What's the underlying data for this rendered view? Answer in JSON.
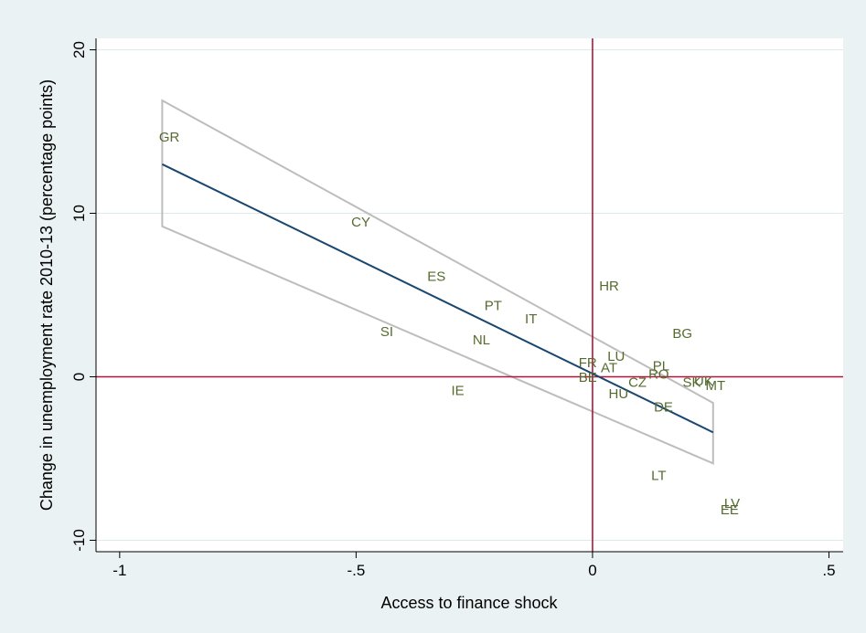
{
  "chart_data": {
    "type": "scatter",
    "title": "",
    "xlabel": "Access to finance shock",
    "ylabel": "Change in unemployment rate 2010-13 (percentage points)",
    "xlim": [
      -1.05,
      0.53
    ],
    "ylim": [
      -10.7,
      20.7
    ],
    "x_ticks": [
      -1,
      -0.5,
      0,
      0.5
    ],
    "x_tick_labels": [
      "-1",
      "-.5",
      "0",
      ".5"
    ],
    "y_ticks": [
      -10,
      0,
      10,
      20
    ],
    "y_tick_labels": [
      "-10",
      "0",
      "10",
      "20"
    ],
    "grid": true,
    "reference_lines": {
      "x": 0,
      "y": 0,
      "color": "#b0163c"
    },
    "points": [
      {
        "label": "GR",
        "x": -0.895,
        "y": 14.6
      },
      {
        "label": "CY",
        "x": -0.49,
        "y": 9.4
      },
      {
        "label": "ES",
        "x": -0.33,
        "y": 6.1
      },
      {
        "label": "PT",
        "x": -0.21,
        "y": 4.3
      },
      {
        "label": "IT",
        "x": -0.13,
        "y": 3.5
      },
      {
        "label": "SI",
        "x": -0.435,
        "y": 2.7
      },
      {
        "label": "NL",
        "x": -0.235,
        "y": 2.2
      },
      {
        "label": "IE",
        "x": -0.285,
        "y": -0.9
      },
      {
        "label": "HR",
        "x": 0.035,
        "y": 5.5
      },
      {
        "label": "BG",
        "x": 0.19,
        "y": 2.6
      },
      {
        "label": "LU",
        "x": 0.05,
        "y": 1.2
      },
      {
        "label": "FR",
        "x": -0.01,
        "y": 0.8
      },
      {
        "label": "AT",
        "x": 0.035,
        "y": 0.5
      },
      {
        "label": "BE",
        "x": -0.01,
        "y": -0.1
      },
      {
        "label": "PL",
        "x": 0.145,
        "y": 0.6
      },
      {
        "label": "RO",
        "x": 0.14,
        "y": 0.1
      },
      {
        "label": "CZ",
        "x": 0.095,
        "y": -0.4
      },
      {
        "label": "SK",
        "x": 0.21,
        "y": -0.4
      },
      {
        "label": "UK",
        "x": 0.235,
        "y": -0.3
      },
      {
        "label": "MT",
        "x": 0.26,
        "y": -0.6
      },
      {
        "label": "HU",
        "x": 0.055,
        "y": -1.1
      },
      {
        "label": "DE",
        "x": 0.15,
        "y": -1.9
      },
      {
        "label": "LT",
        "x": 0.14,
        "y": -6.1
      },
      {
        "label": "LV",
        "x": 0.295,
        "y": -7.8
      },
      {
        "label": "EE",
        "x": 0.29,
        "y": -8.2
      }
    ],
    "fit_line": {
      "x": [
        -0.91,
        0.255
      ],
      "y": [
        13.0,
        -3.4
      ],
      "color": "#1a476f"
    },
    "confidence_band": {
      "upper": {
        "x": [
          -0.91,
          0.255
        ],
        "y": [
          16.9,
          -1.6
        ]
      },
      "lower": {
        "x": [
          -0.91,
          0.255
        ],
        "y": [
          9.2,
          -5.3
        ]
      },
      "color": "#bdbdbd"
    }
  }
}
